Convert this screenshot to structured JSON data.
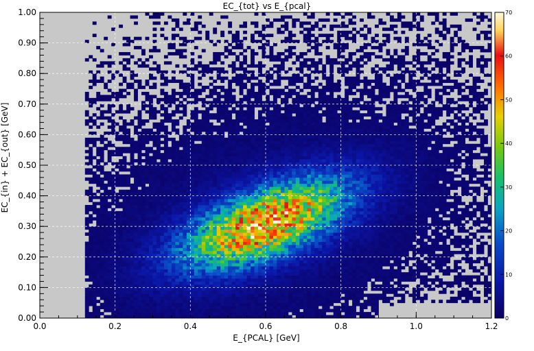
{
  "chart_data": {
    "type": "heatmap",
    "title": "EC_{tot} vs E_{pcal}",
    "xlabel": "E_{PCAL} [GeV]",
    "ylabel": "EC_{in} + EC_{out} [GeV]",
    "xlim": [
      0.0,
      1.2
    ],
    "ylim": [
      0.0,
      1.0
    ],
    "x_ticks": [
      "0.0",
      "0.2",
      "0.4",
      "0.6",
      "0.8",
      "1.0",
      "1.2"
    ],
    "y_ticks": [
      "0.00",
      "0.10",
      "0.20",
      "0.30",
      "0.40",
      "0.50",
      "0.60",
      "0.70",
      "0.80",
      "0.90",
      "1.00"
    ],
    "x_tick_values": [
      0.0,
      0.2,
      0.4,
      0.6,
      0.8,
      1.0,
      1.2
    ],
    "y_tick_values": [
      0.0,
      0.1,
      0.2,
      0.3,
      0.4,
      0.5,
      0.6,
      0.7,
      0.8,
      0.9,
      1.0
    ],
    "colorbar": {
      "zlim": [
        0,
        70
      ],
      "ticks": [
        "0",
        "10",
        "20",
        "30",
        "40",
        "50",
        "60",
        "70"
      ],
      "tick_values": [
        0,
        10,
        20,
        30,
        40,
        50,
        60,
        70
      ]
    },
    "grid": true,
    "bins": {
      "nx": 120,
      "ny": 100
    },
    "background_color": "#c8c8c8",
    "distribution": {
      "peak_x": 0.6,
      "peak_y": 0.31,
      "peak_count": 70,
      "sigma_major": 0.16,
      "sigma_minor": 0.07,
      "tilt_deg": 28
    }
  }
}
